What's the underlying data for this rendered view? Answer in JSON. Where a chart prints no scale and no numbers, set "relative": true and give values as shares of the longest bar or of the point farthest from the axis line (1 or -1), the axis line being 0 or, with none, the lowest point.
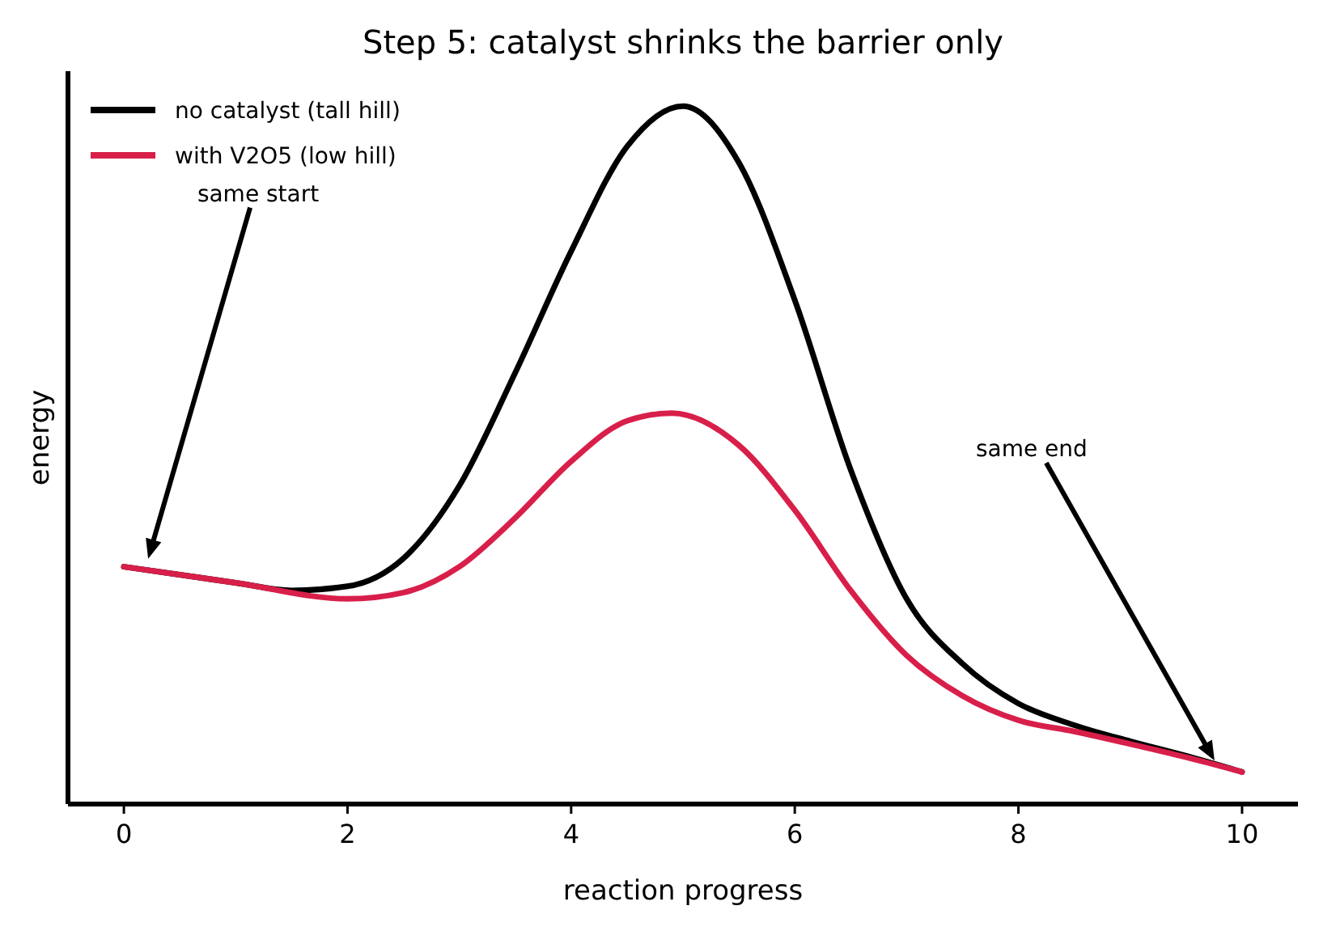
{
  "chart_data": {
    "type": "line",
    "title": "Step 5: catalyst shrinks the barrier only",
    "xlabel": "reaction progress",
    "ylabel": "energy",
    "relative": true,
    "xlim": [
      -0.5,
      10.5
    ],
    "xticks": [
      0,
      2,
      4,
      6,
      8,
      10
    ],
    "tick_labels": "x",
    "grid": false,
    "legend": "top left",
    "line_style": "solid",
    "marker": "none",
    "series": [
      {
        "name": "no catalyst (tall hill)",
        "color": "#000000",
        "x": [
          0,
          1,
          1.5,
          2,
          2.5,
          3,
          3.5,
          4,
          4.5,
          5,
          5.5,
          6,
          6.5,
          7,
          7.5,
          8,
          8.5,
          9,
          9.5,
          10
        ],
        "values": [
          0.34,
          0.317,
          0.306,
          0.312,
          0.352,
          0.456,
          0.618,
          0.792,
          0.942,
          1,
          0.919,
          0.722,
          0.479,
          0.294,
          0.201,
          0.144,
          0.113,
          0.09,
          0.069,
          0.046
        ]
      },
      {
        "name": "with V2O5 (low hill)",
        "color": "#d81f4a",
        "x": [
          0,
          1,
          2,
          2.5,
          3,
          3.5,
          4,
          4.5,
          4.9,
          5.5,
          6,
          6.5,
          7,
          7.5,
          8,
          8.5,
          9,
          9.5,
          10
        ],
        "values": [
          0.34,
          0.317,
          0.294,
          0.303,
          0.34,
          0.41,
          0.491,
          0.549,
          0.56,
          0.514,
          0.421,
          0.306,
          0.213,
          0.155,
          0.12,
          0.104,
          0.086,
          0.067,
          0.046
        ]
      }
    ],
    "annotations": [
      "same start",
      "same end"
    ]
  }
}
